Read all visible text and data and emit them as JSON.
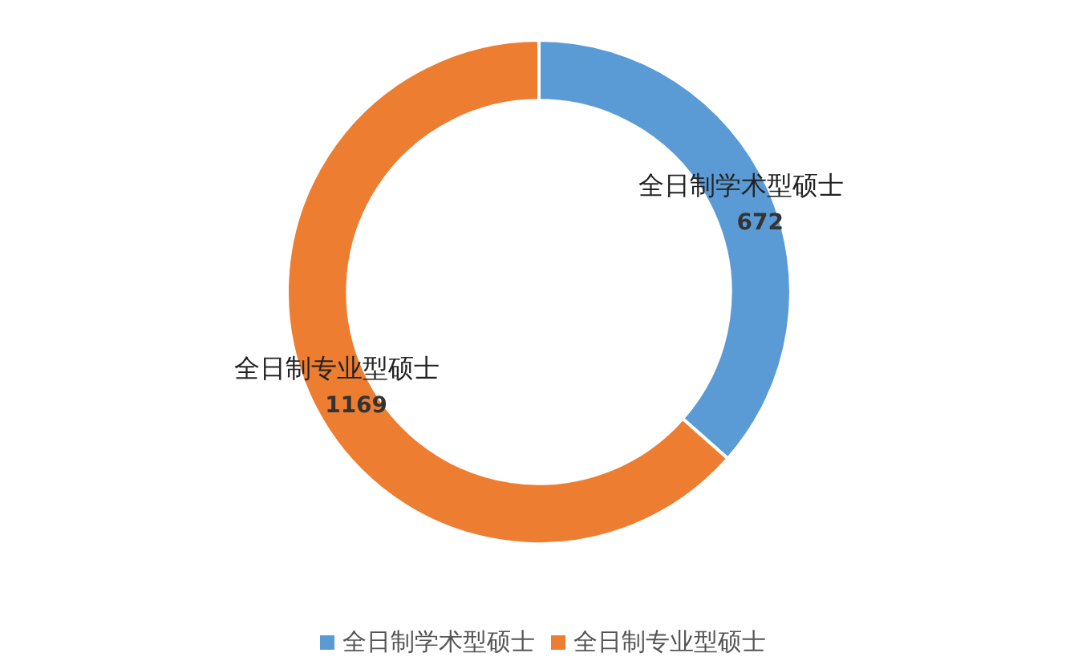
{
  "chart_data": {
    "type": "donut",
    "categories": [
      "全日制学术型硕士",
      "全日制专业型硕士"
    ],
    "values": [
      672,
      1169
    ],
    "colors": [
      "#5b9bd5",
      "#ed7d31"
    ],
    "data_labels": true,
    "legend": "bottom"
  }
}
